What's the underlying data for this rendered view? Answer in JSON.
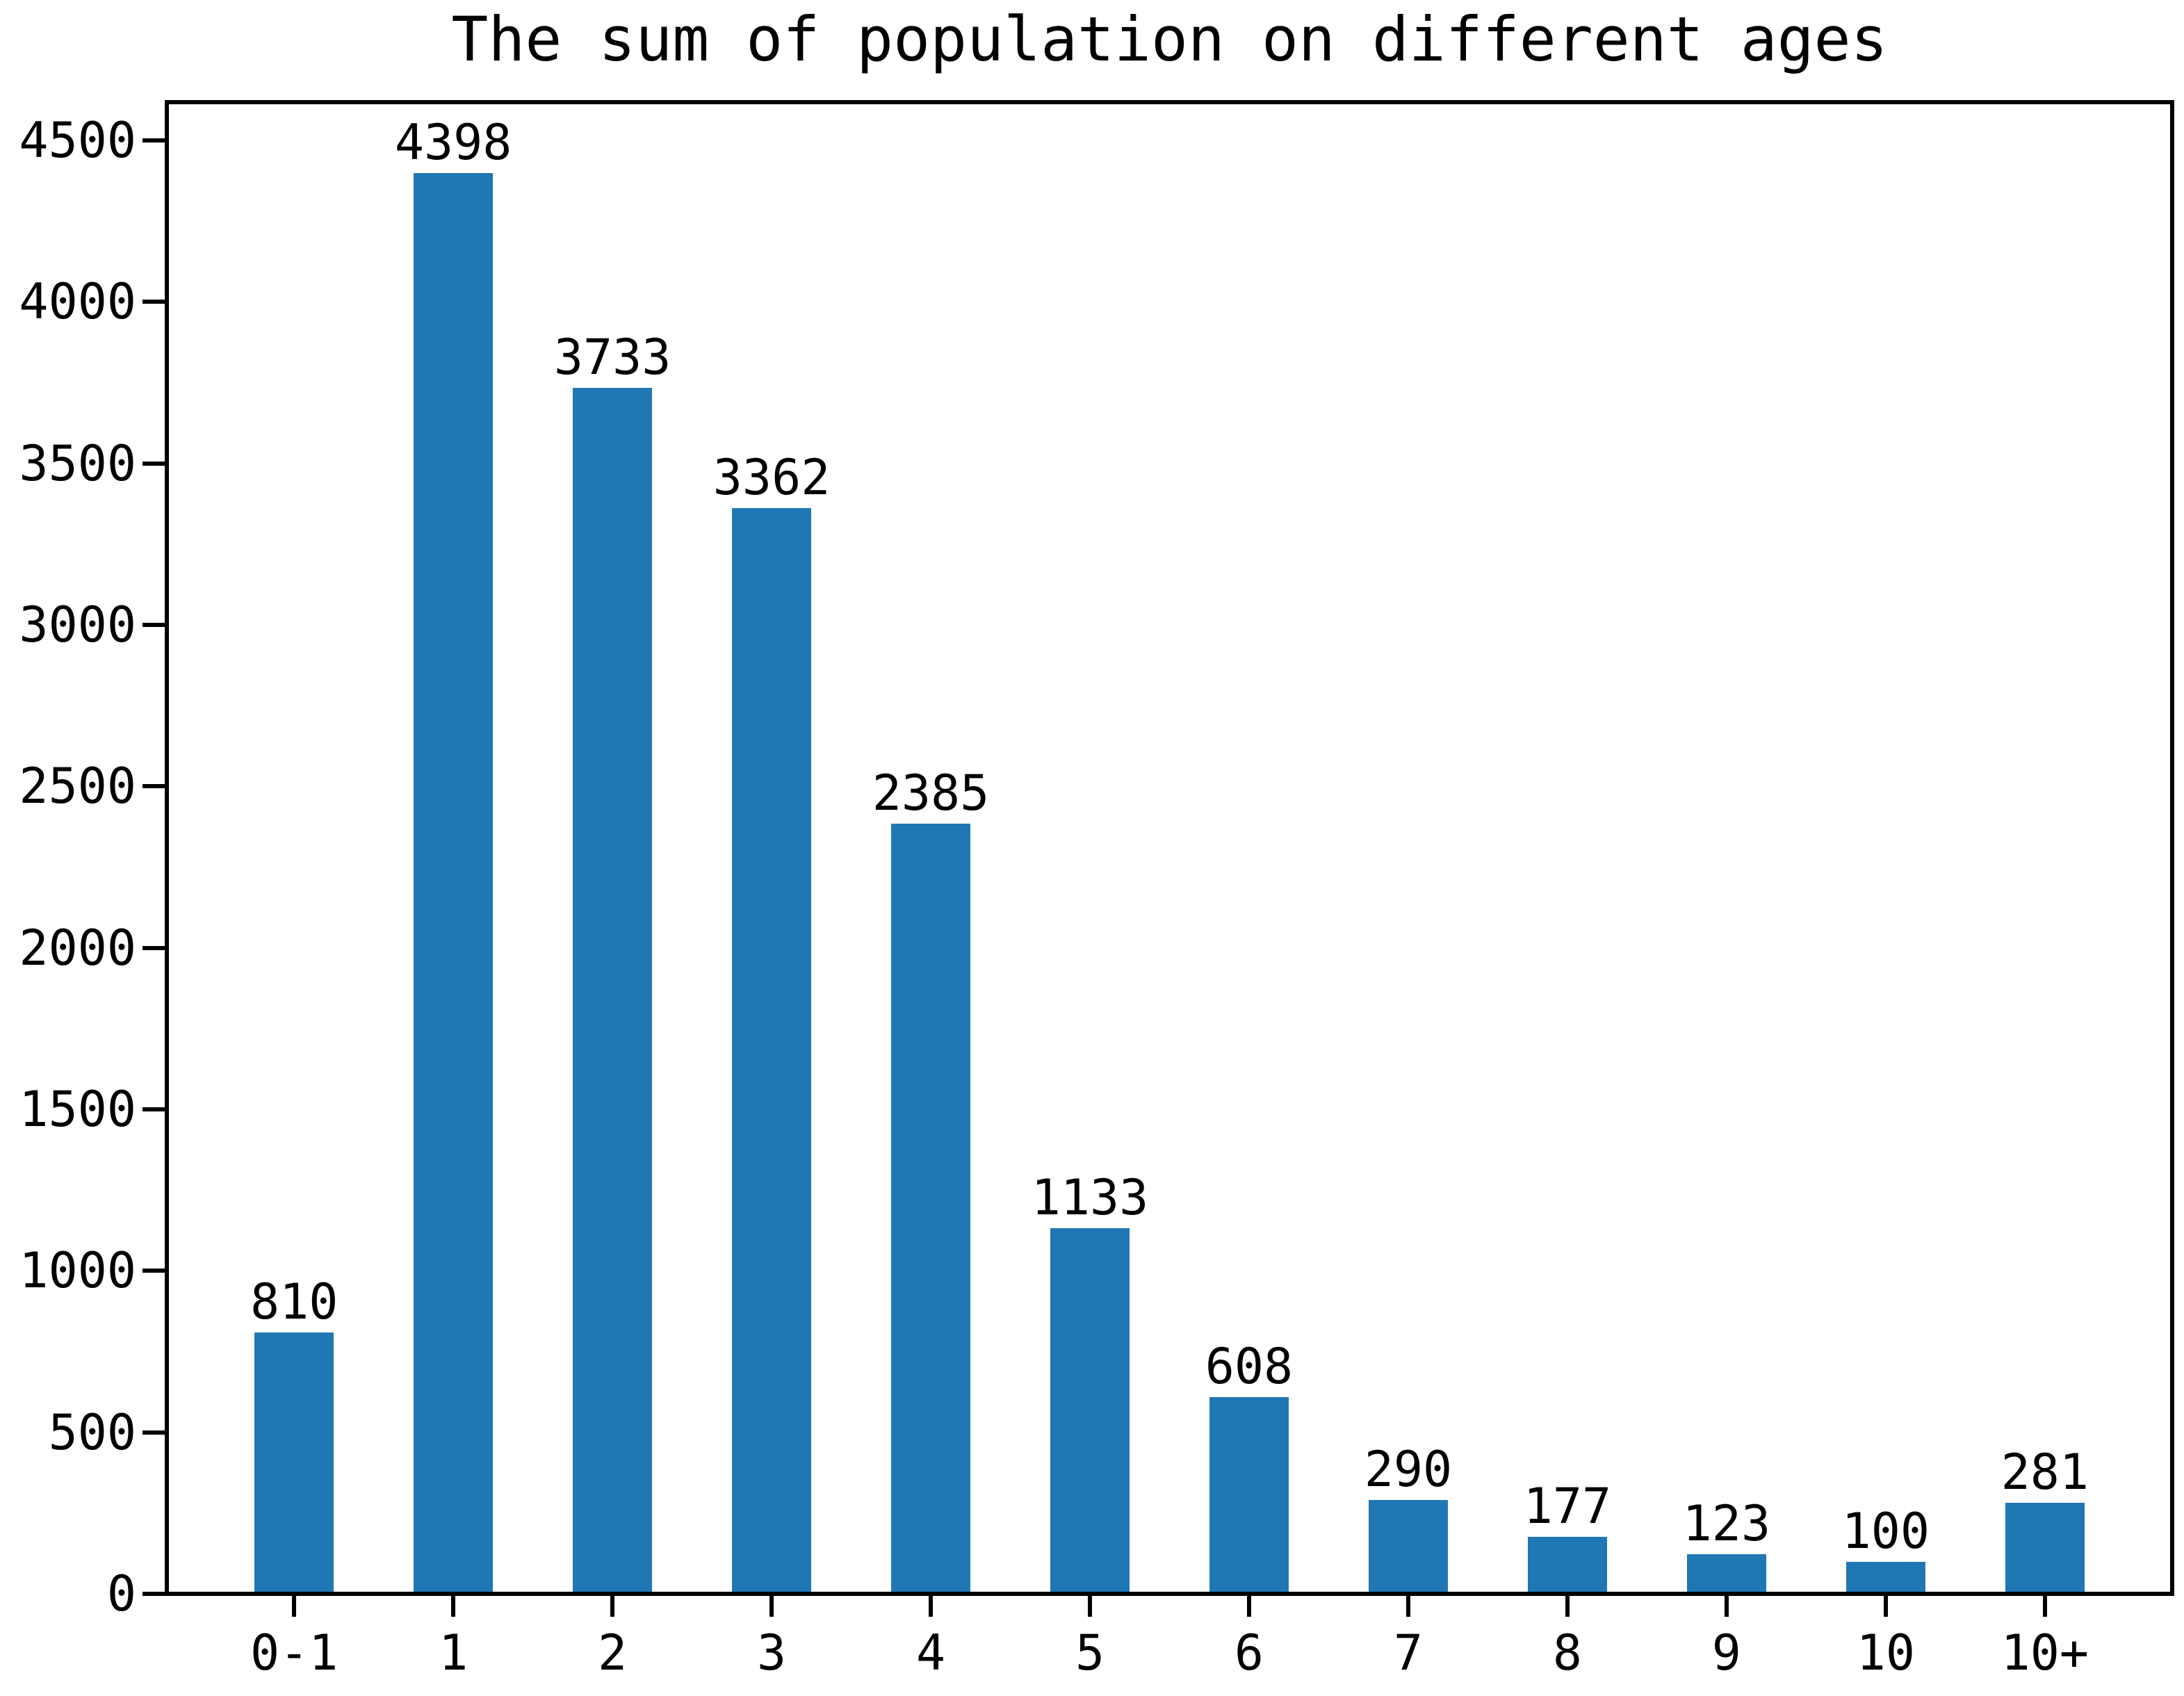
{
  "chart_data": {
    "type": "bar",
    "title": "The sum of population on different ages",
    "categories": [
      "0-1",
      "1",
      "2",
      "3",
      "4",
      "5",
      "6",
      "7",
      "8",
      "9",
      "10",
      "10+"
    ],
    "values": [
      810,
      4398,
      3733,
      3362,
      2385,
      1133,
      608,
      290,
      177,
      123,
      100,
      281
    ],
    "xlabel": "",
    "ylabel": "",
    "ylim": [
      0,
      4618
    ],
    "yticks": [
      0,
      500,
      1000,
      1500,
      2000,
      2500,
      3000,
      3500,
      4000,
      4500
    ],
    "xlim": [
      -0.8,
      11.8
    ],
    "bar_width_units": 0.5,
    "grid": false,
    "legend": null,
    "value_labels_shown": true,
    "colors": {
      "bar": "#1f77b4",
      "axis": "#000000",
      "text": "#000000",
      "background": "#ffffff"
    }
  }
}
